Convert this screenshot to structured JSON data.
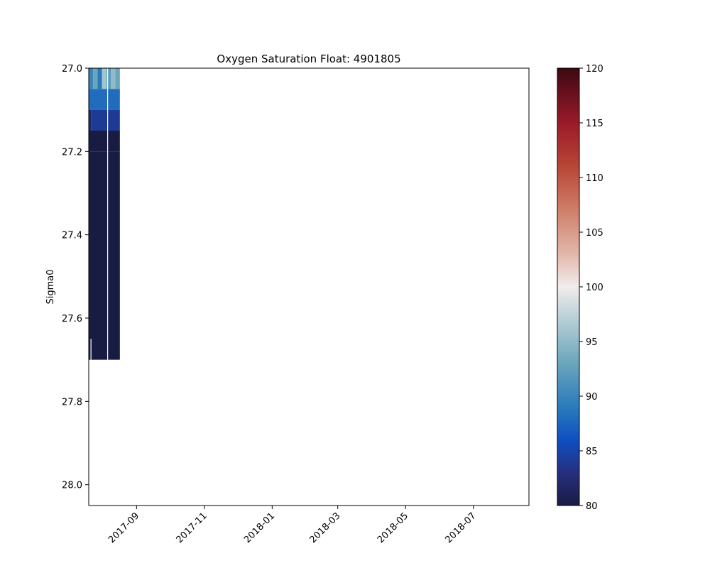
{
  "chart_data": {
    "type": "heatmap",
    "title": "Oxygen Saturation Float: 4901805",
    "xlabel": "",
    "ylabel": "Sigma0",
    "x_axis_type": "date",
    "xlim": [
      "2017-07-20",
      "2018-08-20"
    ],
    "ylim": [
      28.05,
      27.0
    ],
    "y_inverted": true,
    "x_ticks": [
      "2017-09-01",
      "2017-11-01",
      "2018-01-01",
      "2018-03-01",
      "2018-05-01",
      "2018-07-01"
    ],
    "x_tick_labels": [
      "2017-09",
      "2017-11",
      "2018-01",
      "2018-03",
      "2018-05",
      "2018-07"
    ],
    "y_ticks": [
      27.0,
      27.2,
      27.4,
      27.6,
      27.8,
      28.0
    ],
    "y_tick_labels": [
      "27.0",
      "27.2",
      "27.4",
      "27.6",
      "27.8",
      "28.0"
    ],
    "colorbar": {
      "colormap": "balance",
      "range": [
        80,
        120
      ],
      "ticks": [
        80,
        85,
        90,
        95,
        100,
        105,
        110,
        115,
        120
      ],
      "tick_labels": [
        "80",
        "85",
        "90",
        "95",
        "100",
        "105",
        "110",
        "115",
        "120"
      ],
      "stops": [
        {
          "value": 80,
          "color": "#181c43"
        },
        {
          "value": 83,
          "color": "#262f7e"
        },
        {
          "value": 86,
          "color": "#0f4fc1"
        },
        {
          "value": 89,
          "color": "#2a7bbb"
        },
        {
          "value": 93,
          "color": "#6aa5bc"
        },
        {
          "value": 97,
          "color": "#b6cfd6"
        },
        {
          "value": 100,
          "color": "#f1ecec"
        },
        {
          "value": 103,
          "color": "#e2b7aa"
        },
        {
          "value": 107,
          "color": "#cf7f69"
        },
        {
          "value": 111,
          "color": "#b84636"
        },
        {
          "value": 115,
          "color": "#9a1a2a"
        },
        {
          "value": 120,
          "color": "#3c0912"
        }
      ]
    },
    "cells": [
      {
        "x0": "2017-07-20",
        "x1": "2017-07-24",
        "y0": 27.0,
        "y1": 27.05,
        "value": 90
      },
      {
        "x0": "2017-07-24",
        "x1": "2017-07-28",
        "y0": 27.0,
        "y1": 27.05,
        "value": 93
      },
      {
        "x0": "2017-07-28",
        "x1": "2017-08-01",
        "y0": 27.0,
        "y1": 27.05,
        "value": 89
      },
      {
        "x0": "2017-08-01",
        "x1": "2017-08-05",
        "y0": 27.0,
        "y1": 27.05,
        "value": 96
      },
      {
        "x0": "2017-08-05",
        "x1": "2017-08-09",
        "y0": 27.0,
        "y1": 27.05,
        "value": 92
      },
      {
        "x0": "2017-08-09",
        "x1": "2017-08-13",
        "y0": 27.0,
        "y1": 27.05,
        "value": 95
      },
      {
        "x0": "2017-08-13",
        "x1": "2017-08-17",
        "y0": 27.0,
        "y1": 27.05,
        "value": 93
      },
      {
        "x0": "2017-07-20",
        "x1": "2017-08-17",
        "y0": 27.05,
        "y1": 27.1,
        "value": 88
      },
      {
        "x0": "2017-07-20",
        "x1": "2017-07-22",
        "y0": 27.1,
        "y1": 27.15,
        "value": 82
      },
      {
        "x0": "2017-07-22",
        "x1": "2017-08-17",
        "y0": 27.1,
        "y1": 27.15,
        "value": 84
      },
      {
        "x0": "2017-07-20",
        "x1": "2017-08-17",
        "y0": 27.15,
        "y1": 27.2,
        "value": 80
      },
      {
        "x0": "2017-07-20",
        "x1": "2017-08-17",
        "y0": 27.2,
        "y1": 27.7,
        "value": 80
      }
    ]
  }
}
